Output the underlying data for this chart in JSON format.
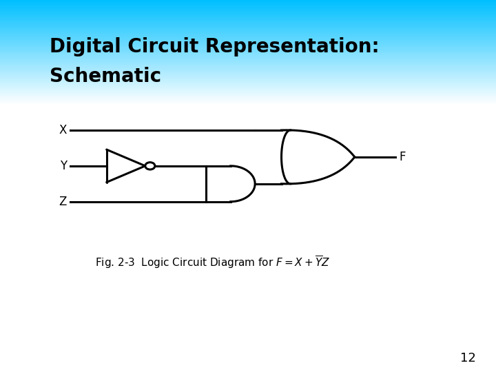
{
  "title_line1": "Digital Circuit Representation:",
  "title_line2": "Schematic",
  "title_fontsize": 20,
  "title_color": "#000000",
  "slide_number": "12",
  "line_width": 2.2,
  "gate_color": "#000000",
  "label_fontsize": 12,
  "caption_fontsize": 11
}
